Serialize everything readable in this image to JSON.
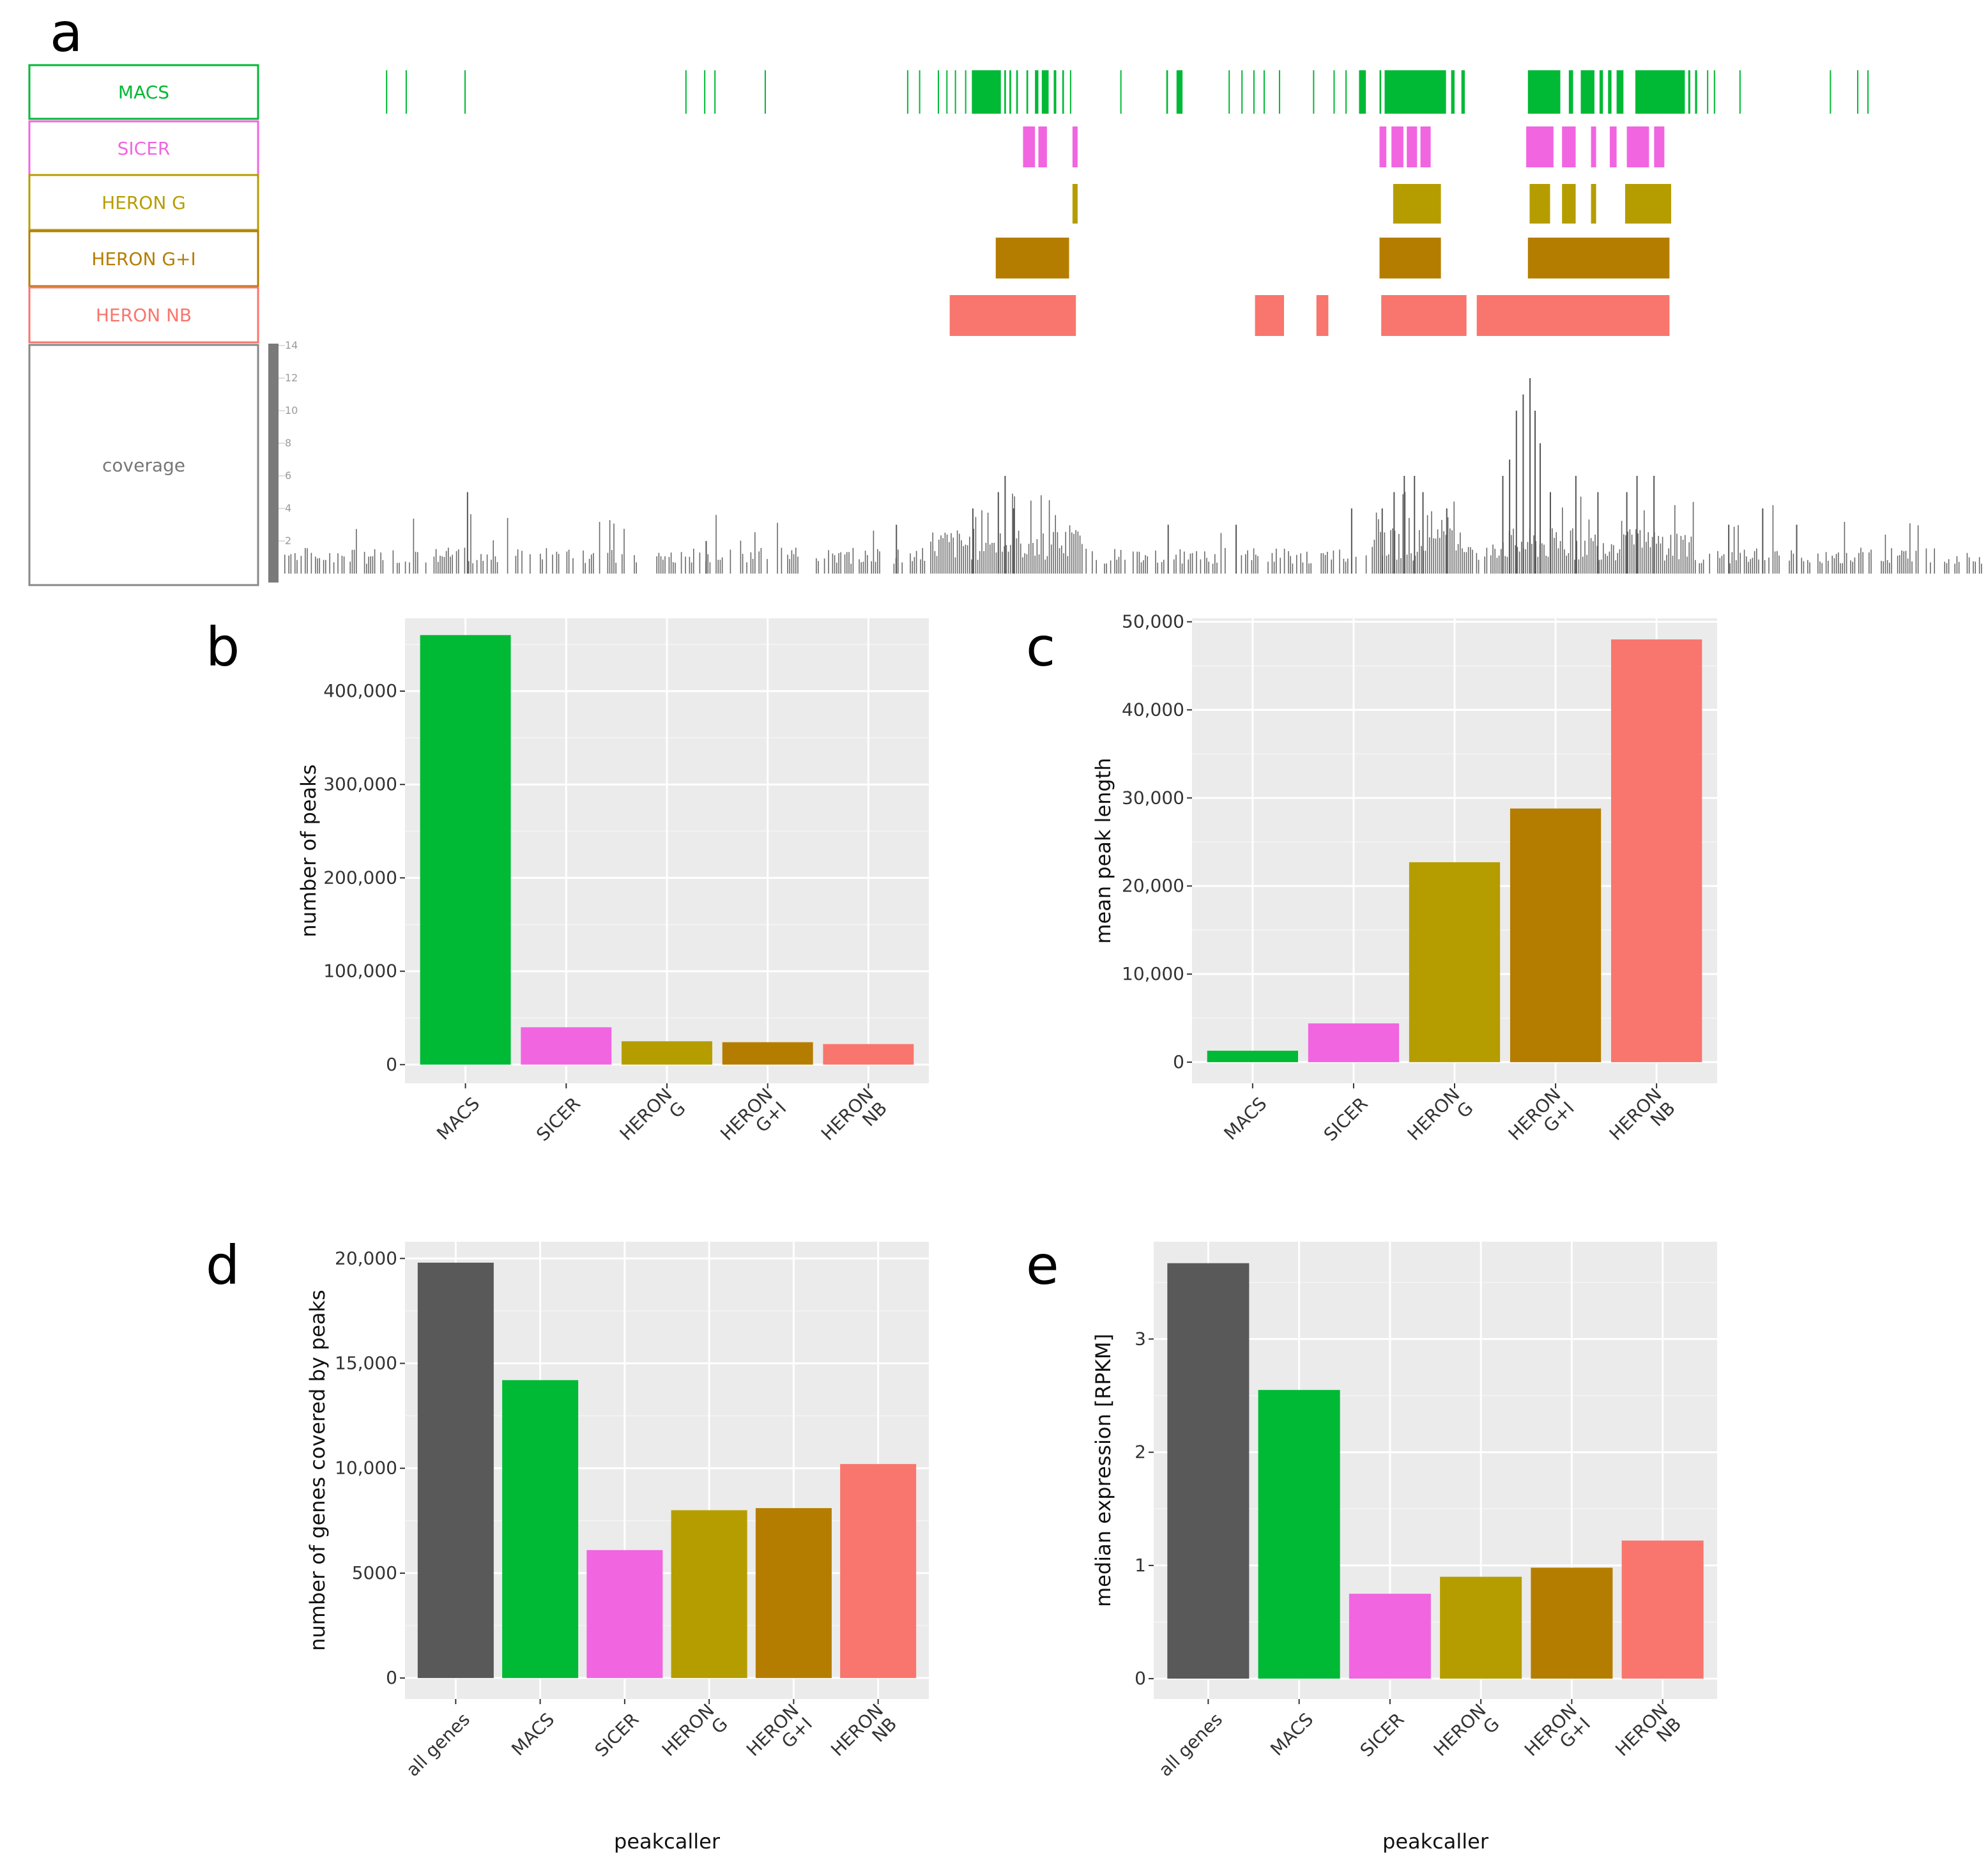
{
  "colors": {
    "MACS": "#00B935",
    "SICER": "#F165E1",
    "HERON G": "#B59D00",
    "HERON G+I": "#B57D00",
    "HERON NB": "#F8766D",
    "all genes": "#595959",
    "coverage": "#777777",
    "panel_bg": "#EBEBEB",
    "grid": "#FFFFFF"
  },
  "panel_a": {
    "letter": "a",
    "tracks": [
      {
        "name": "MACS",
        "color_key": "MACS",
        "intervals": [
          [
            0.0615,
            0.0622
          ],
          [
            0.073,
            0.0737
          ],
          [
            0.1075,
            0.1082
          ],
          [
            0.237,
            0.2377
          ],
          [
            0.248,
            0.2487
          ],
          [
            0.254,
            0.2547
          ],
          [
            0.2835,
            0.2842
          ],
          [
            0.367,
            0.3677
          ],
          [
            0.374,
            0.3747
          ],
          [
            0.385,
            0.3857
          ],
          [
            0.39,
            0.3907
          ],
          [
            0.395,
            0.3957
          ],
          [
            0.401,
            0.4017
          ],
          [
            0.405,
            0.422
          ],
          [
            0.424,
            0.425
          ],
          [
            0.427,
            0.428
          ],
          [
            0.431,
            0.432
          ],
          [
            0.437,
            0.438
          ],
          [
            0.442,
            0.444
          ],
          [
            0.446,
            0.45
          ],
          [
            0.453,
            0.4545
          ],
          [
            0.458,
            0.459
          ],
          [
            0.4625,
            0.4632
          ],
          [
            0.492,
            0.4927
          ],
          [
            0.519,
            0.52
          ],
          [
            0.525,
            0.5285
          ],
          [
            0.5555,
            0.5562
          ],
          [
            0.563,
            0.5637
          ],
          [
            0.57,
            0.5707
          ],
          [
            0.576,
            0.5767
          ],
          [
            0.585,
            0.5857
          ],
          [
            0.605,
            0.6057
          ],
          [
            0.617,
            0.6177
          ],
          [
            0.624,
            0.6247
          ],
          [
            0.632,
            0.636
          ],
          [
            0.644,
            0.645
          ],
          [
            0.647,
            0.683
          ],
          [
            0.686,
            0.688
          ],
          [
            0.692,
            0.694
          ],
          [
            0.731,
            0.75
          ],
          [
            0.755,
            0.7575
          ],
          [
            0.762,
            0.77
          ],
          [
            0.773,
            0.775
          ],
          [
            0.778,
            0.78
          ],
          [
            0.783,
            0.787
          ],
          [
            0.794,
            0.823
          ],
          [
            0.825,
            0.8262
          ],
          [
            0.829,
            0.8302
          ],
          [
            0.836,
            0.8367
          ],
          [
            0.84,
            0.8407
          ],
          [
            0.855,
            0.8557
          ],
          [
            0.908,
            0.9087
          ],
          [
            0.924,
            0.9247
          ],
          [
            0.93,
            0.9307
          ]
        ]
      },
      {
        "name": "SICER",
        "color_key": "SICER",
        "intervals": [
          [
            0.435,
            0.442
          ],
          [
            0.444,
            0.449
          ],
          [
            0.464,
            0.467
          ],
          [
            0.644,
            0.648
          ],
          [
            0.651,
            0.658
          ],
          [
            0.66,
            0.666
          ],
          [
            0.668,
            0.674
          ],
          [
            0.73,
            0.746
          ],
          [
            0.751,
            0.759
          ],
          [
            0.768,
            0.771
          ],
          [
            0.779,
            0.783
          ],
          [
            0.789,
            0.802
          ],
          [
            0.805,
            0.811
          ]
        ]
      },
      {
        "name": "HERON G",
        "color_key": "HERON G",
        "intervals": [
          [
            0.464,
            0.467
          ],
          [
            0.652,
            0.68
          ],
          [
            0.732,
            0.744
          ],
          [
            0.751,
            0.759
          ],
          [
            0.768,
            0.771
          ],
          [
            0.788,
            0.815
          ]
        ]
      },
      {
        "name": "HERON G+I",
        "color_key": "HERON G+I",
        "intervals": [
          [
            0.419,
            0.462
          ],
          [
            0.644,
            0.68
          ],
          [
            0.731,
            0.814
          ]
        ]
      },
      {
        "name": "HERON NB",
        "color_key": "HERON NB",
        "intervals": [
          [
            0.392,
            0.466
          ],
          [
            0.571,
            0.588
          ],
          [
            0.607,
            0.614
          ],
          [
            0.645,
            0.695
          ],
          [
            0.701,
            0.814
          ]
        ]
      }
    ],
    "coverage": {
      "label": "coverage",
      "ticks": [
        "2",
        "4",
        "6",
        "8",
        "10",
        "12",
        "14"
      ],
      "peaks": [
        [
          0.1075,
          5
        ],
        [
          0.248,
          2
        ],
        [
          0.36,
          3
        ],
        [
          0.405,
          4
        ],
        [
          0.42,
          5
        ],
        [
          0.424,
          6
        ],
        [
          0.429,
          4
        ],
        [
          0.52,
          3
        ],
        [
          0.56,
          3
        ],
        [
          0.628,
          4
        ],
        [
          0.646,
          4
        ],
        [
          0.653,
          5
        ],
        [
          0.659,
          6
        ],
        [
          0.665,
          6
        ],
        [
          0.67,
          5
        ],
        [
          0.684,
          4
        ],
        [
          0.717,
          6
        ],
        [
          0.721,
          7
        ],
        [
          0.725,
          10
        ],
        [
          0.729,
          11
        ],
        [
          0.733,
          12
        ],
        [
          0.736,
          10
        ],
        [
          0.739,
          8
        ],
        [
          0.745,
          5
        ],
        [
          0.76,
          6
        ],
        [
          0.773,
          5
        ],
        [
          0.79,
          5
        ],
        [
          0.796,
          6
        ],
        [
          0.806,
          6
        ],
        [
          0.85,
          3
        ],
        [
          0.87,
          4
        ],
        [
          0.89,
          3
        ]
      ]
    }
  },
  "chart_data": [
    {
      "type": "bar",
      "panel": "b",
      "categories": [
        "MACS",
        "SICER",
        "HERON G",
        "HERON G+I",
        "HERON NB"
      ],
      "category_label_lines": [
        [
          "MACS"
        ],
        [
          "SICER"
        ],
        [
          "HERON",
          "G"
        ],
        [
          "HERON",
          "G+I"
        ],
        [
          "HERON",
          "NB"
        ]
      ],
      "values": [
        460000,
        40000,
        25000,
        24000,
        22000
      ],
      "title": "",
      "xlabel": "",
      "ylabel": "number of peaks",
      "ylim": [
        -20000,
        478000
      ],
      "yticks": [
        0,
        100000,
        200000,
        300000,
        400000
      ],
      "ytick_labels": [
        "0",
        "100,000",
        "200,000",
        "300,000",
        "400,000"
      ],
      "grid": true,
      "legend": "none"
    },
    {
      "type": "bar",
      "panel": "c",
      "categories": [
        "MACS",
        "SICER",
        "HERON G",
        "HERON G+I",
        "HERON NB"
      ],
      "category_label_lines": [
        [
          "MACS"
        ],
        [
          "SICER"
        ],
        [
          "HERON",
          "G"
        ],
        [
          "HERON",
          "G+I"
        ],
        [
          "HERON",
          "NB"
        ]
      ],
      "values": [
        1300,
        4400,
        22700,
        28800,
        48000
      ],
      "title": "",
      "xlabel": "",
      "ylabel": "mean peak length",
      "ylim": [
        -2400,
        50400
      ],
      "yticks": [
        0,
        10000,
        20000,
        30000,
        40000,
        50000
      ],
      "ytick_labels": [
        "0",
        "10,000",
        "20,000",
        "30,000",
        "40,000",
        "50,000"
      ],
      "grid": true,
      "legend": "none"
    },
    {
      "type": "bar",
      "panel": "d",
      "categories": [
        "all genes",
        "MACS",
        "SICER",
        "HERON G",
        "HERON G+I",
        "HERON NB"
      ],
      "category_label_lines": [
        [
          "all genes"
        ],
        [
          "MACS"
        ],
        [
          "SICER"
        ],
        [
          "HERON",
          "G"
        ],
        [
          "HERON",
          "G+I"
        ],
        [
          "HERON",
          "NB"
        ]
      ],
      "values": [
        19800,
        14200,
        6100,
        8000,
        8100,
        10200
      ],
      "title": "",
      "xlabel": "peakcaller",
      "ylabel": "number of genes covered by peaks",
      "ylim": [
        -1000,
        20800
      ],
      "yticks": [
        0,
        5000,
        10000,
        15000,
        20000
      ],
      "ytick_labels": [
        "0",
        "5000",
        "10,000",
        "15,000",
        "20,000"
      ],
      "grid": true,
      "legend": "none"
    },
    {
      "type": "bar",
      "panel": "e",
      "categories": [
        "all genes",
        "MACS",
        "SICER",
        "HERON G",
        "HERON G+I",
        "HERON NB"
      ],
      "category_label_lines": [
        [
          "all genes"
        ],
        [
          "MACS"
        ],
        [
          "SICER"
        ],
        [
          "HERON",
          "G"
        ],
        [
          "HERON",
          "G+I"
        ],
        [
          "HERON",
          "NB"
        ]
      ],
      "values": [
        3.67,
        2.55,
        0.75,
        0.9,
        0.98,
        1.22
      ],
      "title": "",
      "xlabel": "peakcaller",
      "ylabel": "median expression [RPKM]",
      "ylim": [
        -0.18,
        3.86
      ],
      "yticks": [
        0,
        1,
        2,
        3
      ],
      "ytick_labels": [
        "0",
        "1",
        "2",
        "3"
      ],
      "grid": true,
      "legend": "none"
    }
  ]
}
